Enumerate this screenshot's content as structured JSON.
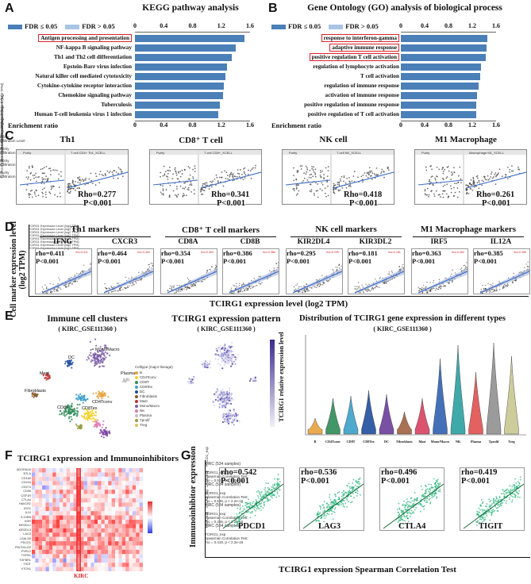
{
  "panels": {
    "A": "A",
    "B": "B",
    "C": "C",
    "D": "D",
    "E": "E",
    "F": "F",
    "G": "G"
  },
  "a": {
    "title": "KEGG pathway analysis",
    "legend_sig": "FDR ≤ 0.05",
    "legend_ns": "FDR > 0.05",
    "ticks": [
      "0",
      "0.4",
      "0.8",
      "1.2",
      "1.6"
    ],
    "xlabel": "Enrichment ratio",
    "bars": [
      {
        "label": "Antigen processing and presentation",
        "value": 1.52,
        "boxed": true
      },
      {
        "label": "NF-kappa B signaling pathway",
        "value": 1.4
      },
      {
        "label": "Th1 and Th2 cell differentiation",
        "value": 1.35
      },
      {
        "label": "Epstein-Barr virus infection",
        "value": 1.28
      },
      {
        "label": "Natural killer cell mediated cytotoxicity",
        "value": 1.26
      },
      {
        "label": "Cytokine-cytokine receptor interaction",
        "value": 1.24
      },
      {
        "label": "Chemokine signaling pathway",
        "value": 1.22
      },
      {
        "label": "Tuberculosis",
        "value": 1.18
      },
      {
        "label": "Human T-cell leukemia virus 1 infection",
        "value": 1.16
      }
    ]
  },
  "b": {
    "title": "Gene Ontology (GO) analysis of biological process",
    "legend_sig": "FDR ≤ 0.05",
    "legend_ns": "FDR > 0.05",
    "ticks": [
      "0",
      "0.4",
      "0.8",
      "1.2",
      "1.6"
    ],
    "xlabel": "Enrichment ratio",
    "bars": [
      {
        "label": "response to interferon-gamma",
        "value": 1.45,
        "boxed": true
      },
      {
        "label": "adaptive immune response",
        "value": 1.44,
        "boxed": true
      },
      {
        "label": "positive regulation T cell activation",
        "value": 1.42,
        "boxed": true
      },
      {
        "label": "regulation of lymphocyte activation",
        "value": 1.35
      },
      {
        "label": "T cell activation",
        "value": 1.33
      },
      {
        "label": "regulation of immune response",
        "value": 1.3
      },
      {
        "label": "activation of immune response",
        "value": 1.28
      },
      {
        "label": "positive regulation of immune response",
        "value": 1.27
      },
      {
        "label": "positive regulation of T cell activation",
        "value": 1.26
      }
    ]
  },
  "c": {
    "ylabel": "TCIRG1 Expression Level (log2 TPM)",
    "purity": "Purity",
    "infil": "Infiltration Level",
    "panels": [
      {
        "title": "Th1",
        "cell": "T cell CD4+ Th1_XCELL",
        "rho": "Rho=0.277",
        "p": "P<0.001"
      },
      {
        "title": "CD8⁺ T cell",
        "cell": "T cell CD8+_XCELL",
        "rho": "Rho=0.341",
        "p": "P<0.001"
      },
      {
        "title": "NK cell",
        "cell": "T cell NK_XCELL",
        "rho": "Rho=0.418",
        "p": "P<0.001"
      },
      {
        "title": "M1 Macrophage",
        "cell": "Macrophage M1_XCELL",
        "rho": "Rho=0.261",
        "p": "P<0.001"
      }
    ]
  },
  "d": {
    "ylabel1": "Cell marker expression level",
    "ylabel2": "(log2 TPM)",
    "xlabel": "TCIRG1 expression level (log2 TPM)",
    "sub_x": "TCIRG1 Expression Level (log2 TPM)",
    "groups": [
      "Th1 markers",
      "CD8⁺ T cell markers",
      "NK cell markers",
      "M1 Macrophage markers"
    ],
    "markers": [
      {
        "gene": "IFNG",
        "rho": "rho=0.411",
        "p": "P<0.001"
      },
      {
        "gene": "CXCR3",
        "rho": "rho=0.464",
        "p": "P<0.001"
      },
      {
        "gene": "CD8A",
        "rho": "rho=0.354",
        "p": "P<0.001"
      },
      {
        "gene": "CD8B",
        "rho": "rho=0.386",
        "p": "P<0.001"
      },
      {
        "gene": "KIR2DL4",
        "rho": "rho=0.295",
        "p": "P<0.001"
      },
      {
        "gene": "KIR3DL2",
        "rho": "rho=0.181",
        "p": "P<0.001"
      },
      {
        "gene": "IRF5",
        "rho": "rho=0.363",
        "p": "P<0.001"
      },
      {
        "gene": "IL12A",
        "rho": "rho=0.385",
        "p": "P<0.001"
      }
    ]
  },
  "e": {
    "umap_title": "Immune cell clusters",
    "umap_sub": "( KIRC_GSE111360 )",
    "expr_title": "TCIRG1 expression pattern",
    "expr_sub": "( KIRC_GSE111360 )",
    "violin_title": "Distribution of TCIRG1 gene expression in different types",
    "violin_sub": "( KIRC_GSE111360 )",
    "violin_ylabel": "TCIRG1 relative   expression level",
    "legend_title": "Celltype (major-lineage)",
    "celltypes": [
      {
        "name": "B",
        "color": "#e8a13b"
      },
      {
        "name": "CD4Tconv",
        "color": "#f2d12c"
      },
      {
        "name": "CD8T",
        "color": "#2e8b57"
      },
      {
        "name": "CD8Tex",
        "color": "#3aa0c8"
      },
      {
        "name": "DC",
        "color": "#1f4e9c"
      },
      {
        "name": "Fibroblasts",
        "color": "#8b5a2b"
      },
      {
        "name": "Mast",
        "color": "#c03030"
      },
      {
        "name": "Mono/Macro",
        "color": "#7b5ea8"
      },
      {
        "name": "NK",
        "color": "#e07bb0"
      },
      {
        "name": "Plasma",
        "color": "#c0c0c0"
      },
      {
        "name": "Tprolif",
        "color": "#9a9a40"
      },
      {
        "name": "Treg",
        "color": "#e0c060"
      }
    ],
    "cluster_labels": [
      "Mono/Macro",
      "DC",
      "Mast",
      "Fibroblasts",
      "Plasma",
      "CD8Tex",
      "CD4Tconv",
      "CD8T"
    ],
    "violin_cats": [
      "B",
      "CD4Tconv",
      "CD8T",
      "CD8Tex",
      "DC",
      "Fibroblasts",
      "Mast",
      "Mono/Macro",
      "NK",
      "Plasma",
      "Tprolif",
      "Treg"
    ],
    "violin_colors": [
      "#e8a13b",
      "#2e8b57",
      "#3aa0c8",
      "#1f4e9c",
      "#6a3d9a",
      "#a06040",
      "#d84060",
      "#3060b0",
      "#2aa0a0",
      "#e05050",
      "#909090",
      "#c8c890"
    ]
  },
  "f": {
    "title": "TCIRG1 expression and Immunoinhibitors",
    "genes": [
      "ADORA2A",
      "BTLA",
      "CD160",
      "CD244",
      "CD274",
      "CD96",
      "CSF1R",
      "CTLA4",
      "HAVCR2",
      "IDO1",
      "IL10",
      "IL10RB",
      "KDR",
      "KIR2DL1",
      "KIR2DL3",
      "LAG3",
      "LGALS9",
      "PDCD1",
      "PDCD1LG2",
      "PVRL2",
      "TGFB1",
      "TGFBR1",
      "TIGIT",
      "VTCN1"
    ],
    "highlight": "KIRC"
  },
  "g": {
    "ylabel": "Immunoinhibitor expression",
    "xlabel": "TCIRG1 expression Spearman Correlation Test",
    "panels": [
      {
        "gene": "PDCD1",
        "top": "KIRC (534 samples)",
        "rho": "rho=0.542",
        "p": "P<0.001",
        "yax": "PDCD1_exp",
        "xax": "TCIRG1_exp",
        "test": "Spearman Correlation Test:",
        "res": "rho = 0.542, p < 2.2e-16"
      },
      {
        "gene": "LAG3",
        "top": "KIRC (534 samples)",
        "rho": "rho=0.536",
        "p": "P<0.001",
        "yax": "LAG3_exp",
        "xax": "TCIRG1_exp",
        "test": "Spearman Correlation Test:",
        "res": "rho = 0.536, p < 2.2e-16"
      },
      {
        "gene": "CTLA4",
        "top": "KIRC (534 samples)",
        "rho": "rho=0.496",
        "p": "P<0.001",
        "yax": "CTLA4_exp",
        "xax": "TCIRG1_exp",
        "test": "Spearman Correlation Test:",
        "res": "rho = 0.496, p < 2.2e-16"
      },
      {
        "gene": "TIGIT",
        "top": "KIRC (534 samples)",
        "rho": "rho=0.419",
        "p": "P<0.001",
        "yax": "TIGIT_exp",
        "xax": "TCIRG1_exp",
        "test": "Spearman Correlation Test:",
        "res": "rho = 0.419, p < 2.2e-16"
      }
    ]
  }
}
